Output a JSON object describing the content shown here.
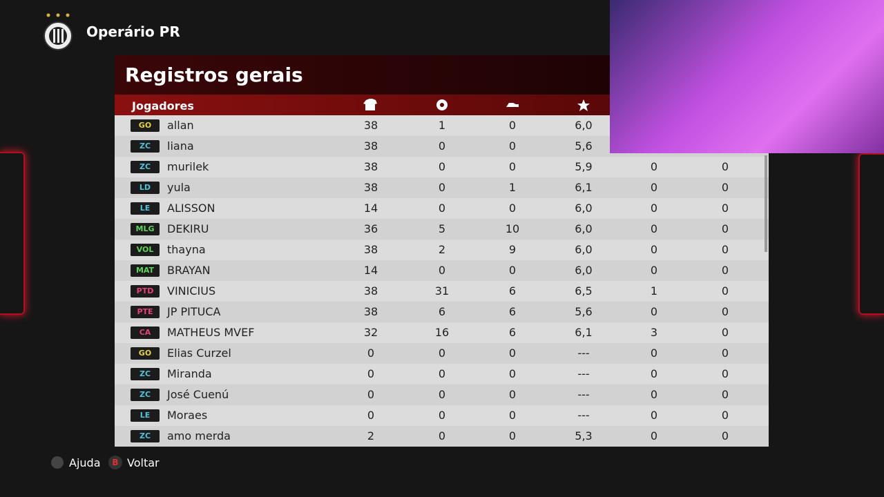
{
  "header": {
    "team": "Operário PR"
  },
  "panel": {
    "title": "Registros gerais",
    "player_column": "Jogadores"
  },
  "table": {
    "rows": [
      {
        "position": "GO",
        "color": "#e8d43a",
        "name": "allan",
        "stats": [
          38,
          1,
          0,
          "6,0"
        ]
      },
      {
        "position": "ZC",
        "color": "#4fc3dc",
        "name": "liana",
        "stats": [
          38,
          0,
          0,
          "5,6"
        ]
      },
      {
        "position": "ZC",
        "color": "#4fc3dc",
        "name": "murilek",
        "stats": [
          38,
          0,
          0,
          "5,9",
          0,
          0
        ]
      },
      {
        "position": "LD",
        "color": "#4fc3dc",
        "name": "yula",
        "stats": [
          38,
          0,
          1,
          "6,1",
          0,
          0
        ]
      },
      {
        "position": "LE",
        "color": "#4fc3dc",
        "name": "ALISSON",
        "stats": [
          14,
          0,
          0,
          "6,0",
          0,
          0
        ]
      },
      {
        "position": "MLG",
        "color": "#5fd35a",
        "name": "DEKIRU",
        "stats": [
          36,
          5,
          10,
          "6,0",
          0,
          0
        ]
      },
      {
        "position": "VOL",
        "color": "#5fd35a",
        "name": "thayna",
        "stats": [
          38,
          2,
          9,
          "6,0",
          0,
          0
        ]
      },
      {
        "position": "MAT",
        "color": "#5fd35a",
        "name": "BRAYAN",
        "stats": [
          14,
          0,
          0,
          "6,0",
          0,
          0
        ]
      },
      {
        "position": "PTD",
        "color": "#e8407a",
        "name": "VINICIUS",
        "stats": [
          38,
          31,
          6,
          "6,5",
          1,
          0
        ]
      },
      {
        "position": "PTE",
        "color": "#e8407a",
        "name": "JP PITUCA",
        "stats": [
          38,
          6,
          6,
          "5,6",
          0,
          0
        ]
      },
      {
        "position": "CA",
        "color": "#e8407a",
        "name": "MATHEUS MVEF",
        "stats": [
          32,
          16,
          6,
          "6,1",
          3,
          0
        ]
      },
      {
        "position": "GO",
        "color": "#e8d43a",
        "name": "Elias Curzel",
        "stats": [
          0,
          0,
          0,
          "---",
          0,
          0
        ]
      },
      {
        "position": "ZC",
        "color": "#4fc3dc",
        "name": "Miranda",
        "stats": [
          0,
          0,
          0,
          "---",
          0,
          0
        ]
      },
      {
        "position": "ZC",
        "color": "#4fc3dc",
        "name": "José Cuenú",
        "stats": [
          0,
          0,
          0,
          "---",
          0,
          0
        ]
      },
      {
        "position": "LE",
        "color": "#4fc3dc",
        "name": "Moraes",
        "stats": [
          0,
          0,
          0,
          "---",
          0,
          0
        ]
      },
      {
        "position": "ZC",
        "color": "#4fc3dc",
        "name": "amo merda",
        "stats": [
          2,
          0,
          0,
          "5,3",
          0,
          0
        ]
      }
    ]
  },
  "footer": {
    "help": "Ajuda",
    "back_key": "B",
    "back": "Voltar"
  }
}
